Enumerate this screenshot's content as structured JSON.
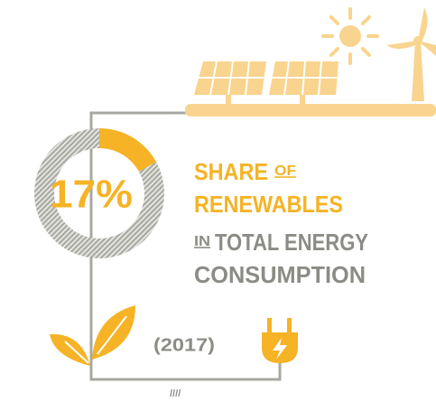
{
  "chart_data": {
    "type": "donut",
    "values": [
      17,
      83
    ],
    "value_labels": [
      "17%",
      null
    ],
    "colors": [
      "#f5b325",
      "#a8a8a2"
    ],
    "title_lines": [
      [
        "SHARE",
        "OF"
      ],
      [
        "RENEWABLES"
      ],
      [
        "IN",
        "TOTAL ENERGY"
      ],
      [
        "CONSUMPTION"
      ]
    ],
    "note": "(2017)"
  }
}
